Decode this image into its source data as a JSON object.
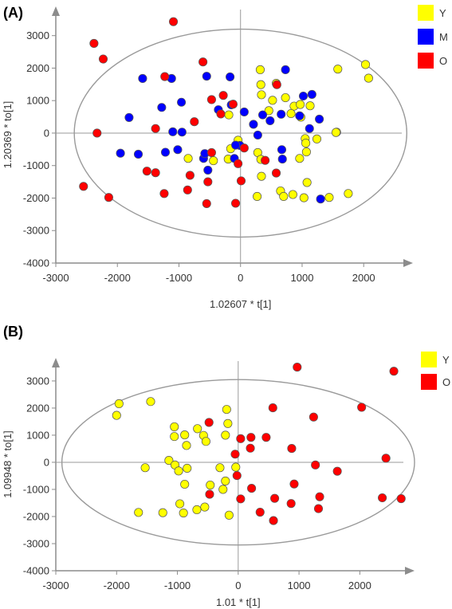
{
  "chart_data": [
    {
      "type": "scatter",
      "panel_label": "(A)",
      "xlabel": "1.02607 * t[1]",
      "ylabel": "1.20369 * to[1]",
      "xlim": [
        -3000,
        2800
      ],
      "ylim": [
        -4000,
        3900
      ],
      "x_ticks": [
        -3000,
        -2000,
        -1000,
        0,
        1000,
        2000
      ],
      "y_ticks": [
        3000,
        2000,
        1000,
        0,
        -1000,
        -2000,
        -3000,
        -4000
      ],
      "ellipse": {
        "cx": 0,
        "cy": 0,
        "rx": 2700,
        "ry": 3200
      },
      "legend": [
        {
          "name": "Y",
          "color": "#ffff00"
        },
        {
          "name": "M",
          "color": "#0000ff"
        },
        {
          "name": "O",
          "color": "#ff0000"
        }
      ],
      "series": [
        {
          "name": "Y",
          "color": "#ffff00",
          "points": [
            [
              320,
              1950
            ],
            [
              1580,
              1970
            ],
            [
              2030,
              2110
            ],
            [
              2080,
              1690
            ],
            [
              330,
              1490
            ],
            [
              580,
              1530
            ],
            [
              340,
              1180
            ],
            [
              520,
              1010
            ],
            [
              730,
              1090
            ],
            [
              870,
              830
            ],
            [
              970,
              880
            ],
            [
              1130,
              840
            ],
            [
              460,
              690
            ],
            [
              820,
              600
            ],
            [
              980,
              490
            ],
            [
              1050,
              -170
            ],
            [
              1060,
              -310
            ],
            [
              1240,
              -180
            ],
            [
              1560,
              30
            ],
            [
              1550,
              20
            ],
            [
              -190,
              560
            ],
            [
              -160,
              -480
            ],
            [
              -200,
              -800
            ],
            [
              280,
              -600
            ],
            [
              330,
              -810
            ],
            [
              340,
              -1330
            ],
            [
              960,
              -780
            ],
            [
              1070,
              -580
            ],
            [
              1080,
              -1520
            ],
            [
              650,
              -1780
            ],
            [
              700,
              -1950
            ],
            [
              850,
              -1890
            ],
            [
              270,
              -1950
            ],
            [
              1030,
              -1990
            ],
            [
              1440,
              -1980
            ],
            [
              1750,
              -1860
            ],
            [
              -850,
              -780
            ],
            [
              -440,
              -850
            ],
            [
              -40,
              -220
            ]
          ]
        },
        {
          "name": "M",
          "color": "#0000ff",
          "points": [
            [
              -1590,
              1680
            ],
            [
              -1120,
              1680
            ],
            [
              -1280,
              790
            ],
            [
              -550,
              1750
            ],
            [
              -170,
              1730
            ],
            [
              -150,
              870
            ],
            [
              -360,
              720
            ],
            [
              -960,
              950
            ],
            [
              -1810,
              480
            ],
            [
              -1100,
              40
            ],
            [
              -950,
              30
            ],
            [
              -1950,
              -620
            ],
            [
              -1660,
              -650
            ],
            [
              -1220,
              -590
            ],
            [
              -1020,
              -510
            ],
            [
              -600,
              -780
            ],
            [
              -580,
              -630
            ],
            [
              -530,
              -1140
            ],
            [
              -100,
              -780
            ],
            [
              -10,
              -380
            ],
            [
              60,
              650
            ],
            [
              210,
              270
            ],
            [
              280,
              -60
            ],
            [
              360,
              560
            ],
            [
              480,
              380
            ],
            [
              660,
              580
            ],
            [
              730,
              1950
            ],
            [
              1020,
              1140
            ],
            [
              1160,
              1190
            ],
            [
              1280,
              430
            ],
            [
              1120,
              140
            ],
            [
              960,
              530
            ],
            [
              670,
              -510
            ],
            [
              680,
              -800
            ],
            [
              1300,
              -2030
            ],
            [
              -80,
              -370
            ]
          ]
        },
        {
          "name": "O",
          "color": "#ff0000",
          "points": [
            [
              -2380,
              2760
            ],
            [
              -2230,
              2280
            ],
            [
              -1090,
              3430
            ],
            [
              -610,
              2190
            ],
            [
              -1230,
              1740
            ],
            [
              -750,
              350
            ],
            [
              -820,
              -1300
            ],
            [
              -1520,
              -1170
            ],
            [
              -1380,
              -1220
            ],
            [
              -1240,
              -1860
            ],
            [
              -860,
              -1750
            ],
            [
              -530,
              -1500
            ],
            [
              -550,
              -2170
            ],
            [
              -80,
              -2160
            ],
            [
              -470,
              1030
            ],
            [
              -280,
              1160
            ],
            [
              -320,
              590
            ],
            [
              -120,
              890
            ],
            [
              10,
              -1470
            ],
            [
              -40,
              -940
            ],
            [
              -470,
              -600
            ],
            [
              60,
              -460
            ],
            [
              590,
              1490
            ],
            [
              400,
              -840
            ],
            [
              580,
              -1230
            ],
            [
              -2330,
              0
            ],
            [
              -2140,
              -1980
            ],
            [
              -2550,
              -1640
            ],
            [
              -1380,
              140
            ]
          ]
        }
      ]
    },
    {
      "type": "scatter",
      "panel_label": "(B)",
      "xlabel": "1.01 * t[1]",
      "ylabel": "1.09948 * to[1]",
      "xlim": [
        -3000,
        2900
      ],
      "ylim": [
        -4000,
        3850
      ],
      "x_ticks": [
        -3000,
        -2000,
        -1000,
        0,
        1000,
        2000
      ],
      "y_ticks": [
        3000,
        2000,
        1000,
        0,
        -1000,
        -2000,
        -3000,
        -4000
      ],
      "ellipse": {
        "cx": 0,
        "cy": 0,
        "rx": 2900,
        "ry": 3050
      },
      "legend": [
        {
          "name": "Y",
          "color": "#ffff00"
        },
        {
          "name": "O",
          "color": "#ff0000"
        }
      ],
      "series": [
        {
          "name": "Y",
          "color": "#ffff00",
          "points": [
            [
              -1960,
              2160
            ],
            [
              -2000,
              1730
            ],
            [
              -1440,
              2240
            ],
            [
              -1050,
              1310
            ],
            [
              -1050,
              950
            ],
            [
              -880,
              1010
            ],
            [
              -670,
              1240
            ],
            [
              -570,
              990
            ],
            [
              -190,
              1950
            ],
            [
              -210,
              1000
            ],
            [
              -170,
              1430
            ],
            [
              -530,
              770
            ],
            [
              -460,
              -840
            ],
            [
              -300,
              -200
            ],
            [
              -210,
              -690
            ],
            [
              -850,
              620
            ],
            [
              -1140,
              70
            ],
            [
              -1040,
              -100
            ],
            [
              -980,
              -320
            ],
            [
              -880,
              -810
            ],
            [
              -1530,
              -200
            ],
            [
              -960,
              -1530
            ],
            [
              -1640,
              -1850
            ],
            [
              -1240,
              -1860
            ],
            [
              -900,
              -1870
            ],
            [
              -550,
              -1650
            ],
            [
              -680,
              -1750
            ],
            [
              -250,
              -1000
            ],
            [
              -150,
              -1950
            ],
            [
              -40,
              -180
            ],
            [
              -840,
              -220
            ]
          ]
        },
        {
          "name": "O",
          "color": "#ff0000",
          "points": [
            [
              970,
              3510
            ],
            [
              2560,
              3360
            ],
            [
              570,
              2010
            ],
            [
              2030,
              2030
            ],
            [
              1240,
              1670
            ],
            [
              -480,
              1470
            ],
            [
              40,
              870
            ],
            [
              210,
              920
            ],
            [
              460,
              920
            ],
            [
              880,
              510
            ],
            [
              1630,
              -330
            ],
            [
              2430,
              150
            ],
            [
              1270,
              -100
            ],
            [
              -20,
              -490
            ],
            [
              220,
              -960
            ],
            [
              920,
              -800
            ],
            [
              40,
              -1350
            ],
            [
              600,
              -1330
            ],
            [
              870,
              -1520
            ],
            [
              1340,
              -1270
            ],
            [
              1320,
              -1710
            ],
            [
              2370,
              -1310
            ],
            [
              2680,
              -1340
            ],
            [
              -470,
              -1180
            ],
            [
              360,
              -1840
            ],
            [
              580,
              -2150
            ],
            [
              200,
              520
            ],
            [
              -50,
              300
            ]
          ]
        }
      ]
    }
  ]
}
